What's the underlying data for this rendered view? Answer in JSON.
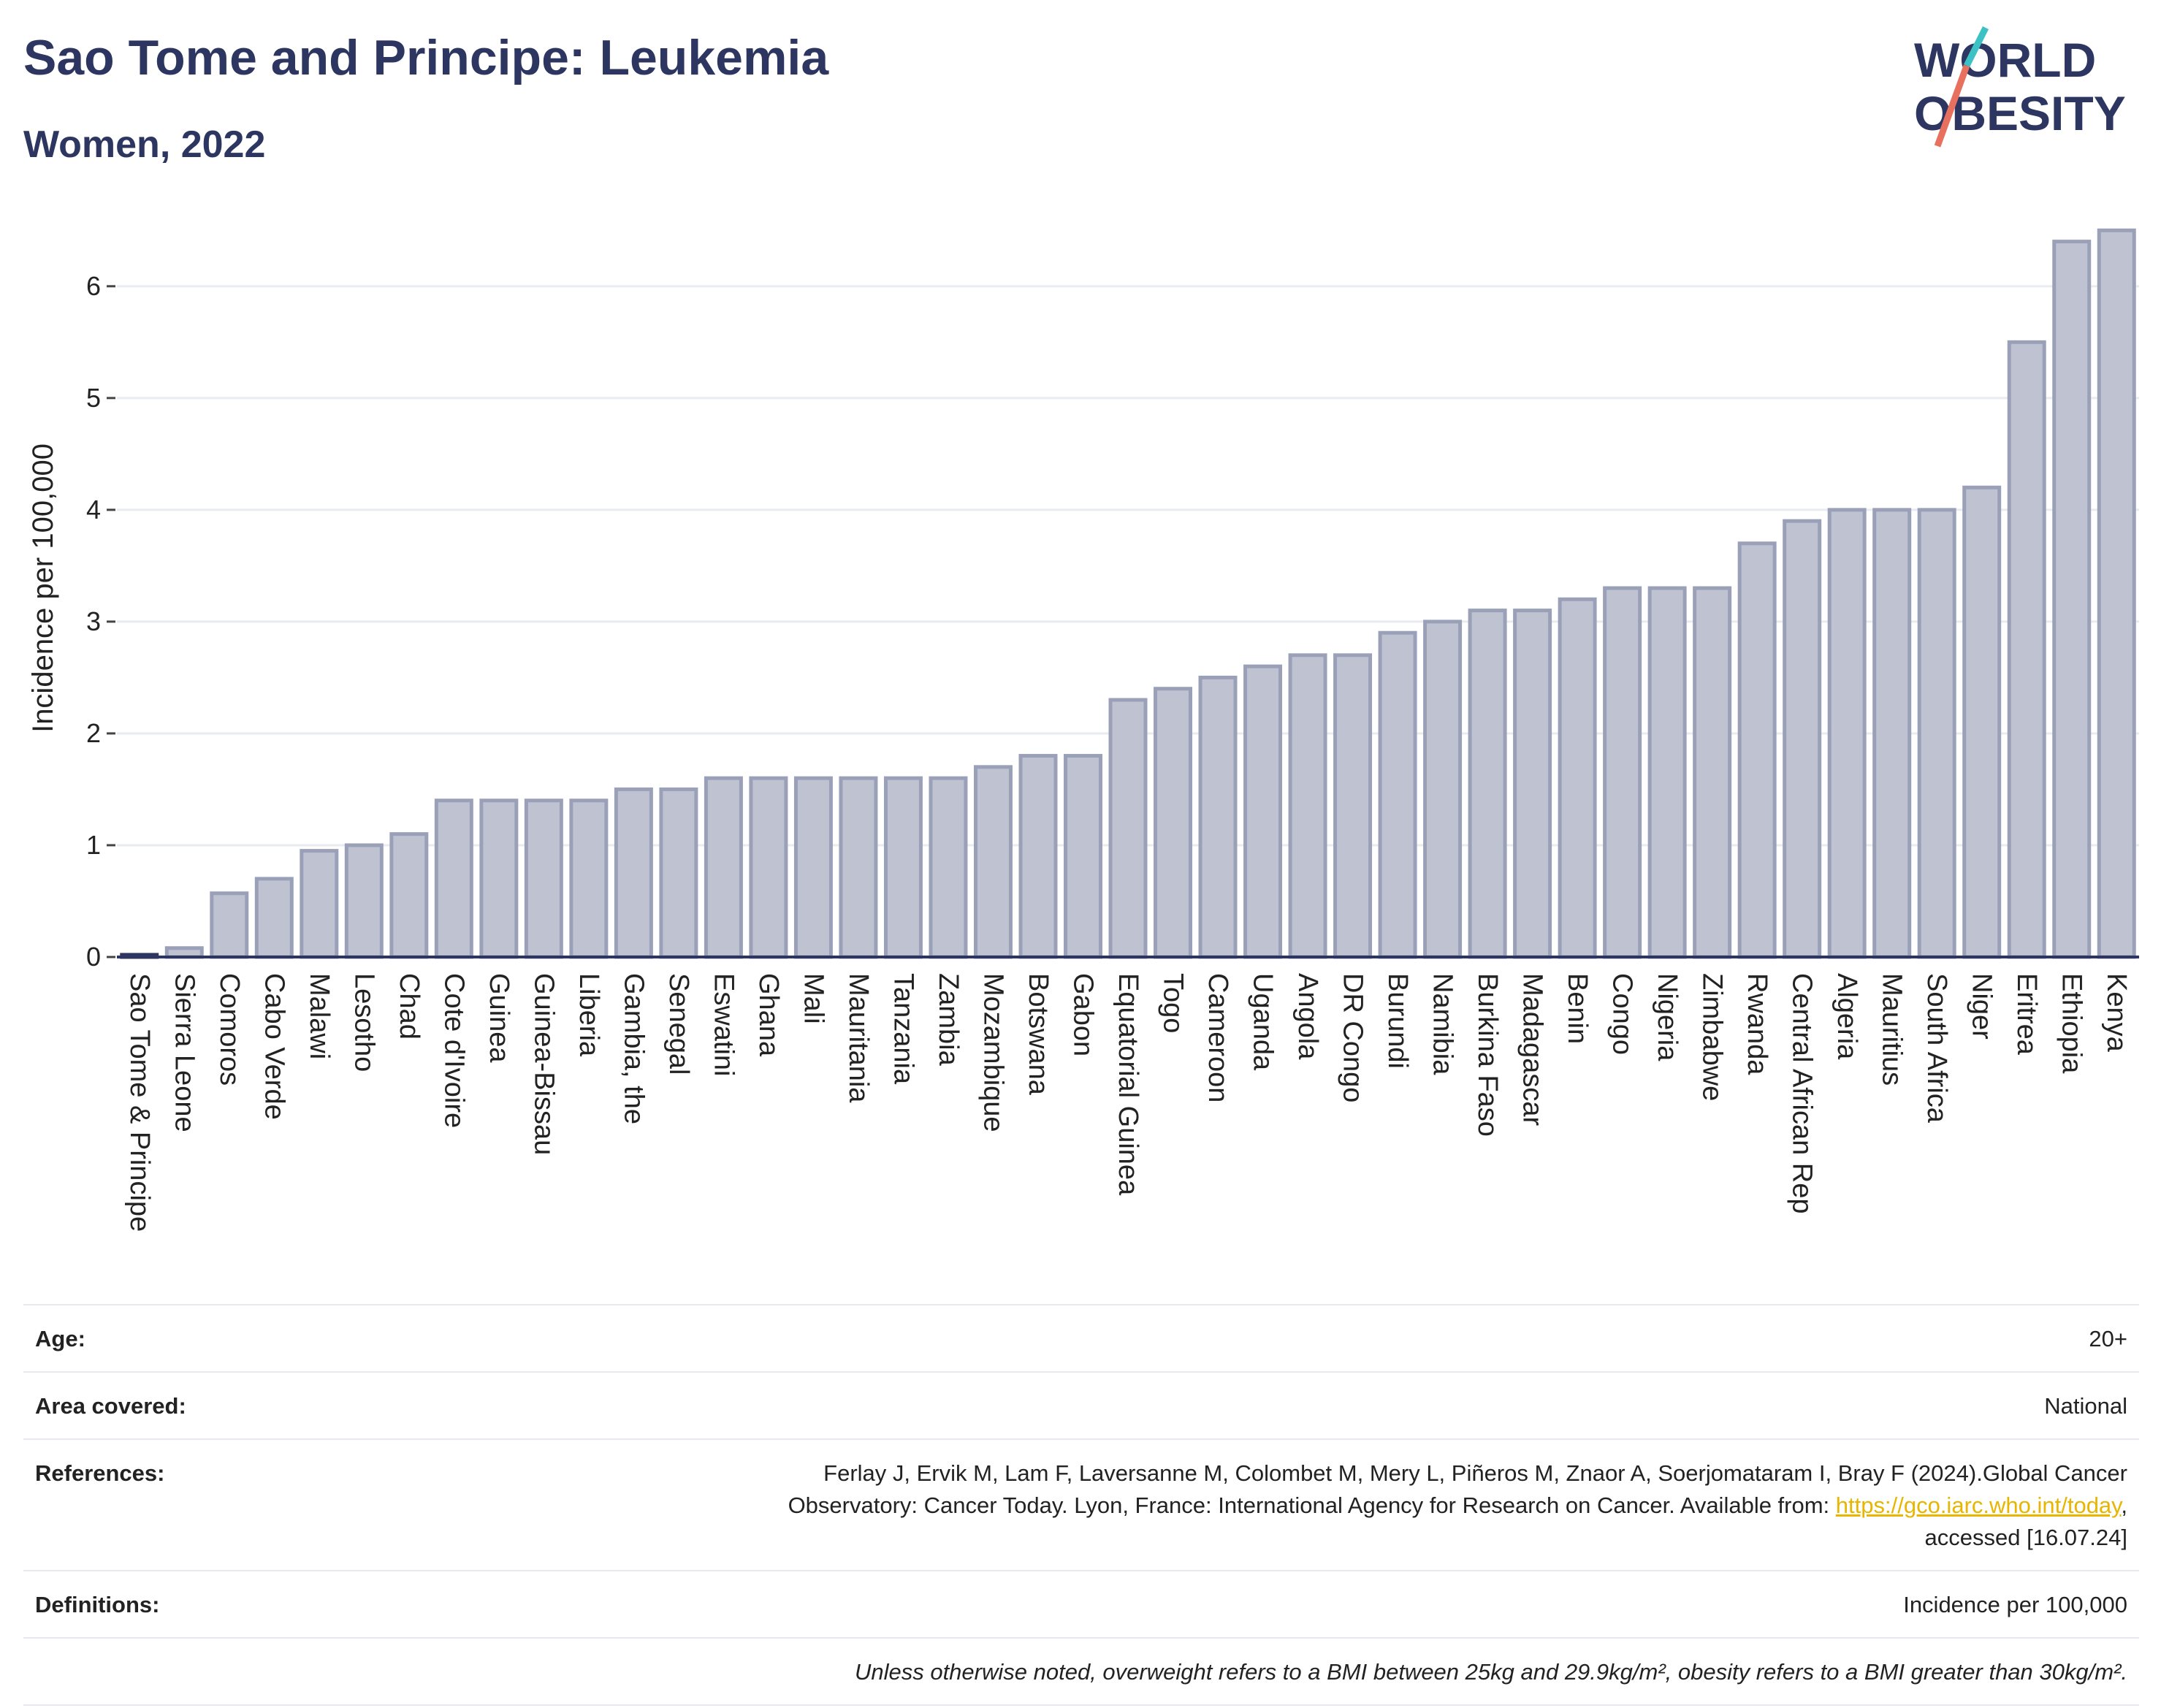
{
  "header": {
    "title": "Sao Tome and Principe: Leukemia",
    "subtitle": "Women, 2022",
    "logo_line1": "WORLD",
    "logo_line2": "OBESITY"
  },
  "colors": {
    "title": "#2d3660",
    "bar_fill": "#bfc3d1",
    "bar_stroke": "#9aa0b8",
    "highlight": "#2d3660",
    "link": "#e8b500",
    "logo_teal": "#3cc1c4",
    "logo_coral": "#e8705f"
  },
  "chart_data": {
    "type": "bar",
    "ylabel": "Incidence per 100,000",
    "xlabel": "",
    "ylim": [
      0,
      6.6
    ],
    "yticks": [
      0,
      1,
      2,
      3,
      4,
      5,
      6
    ],
    "grid": true,
    "highlight_category": "Sao Tome & Principe",
    "categories": [
      "Sao Tome & Principe",
      "Sierra Leone",
      "Comoros",
      "Cabo Verde",
      "Malawi",
      "Lesotho",
      "Chad",
      "Cote d'Ivoire",
      "Guinea",
      "Guinea-Bissau",
      "Liberia",
      "Gambia, the",
      "Senegal",
      "Eswatini",
      "Ghana",
      "Mali",
      "Mauritania",
      "Tanzania",
      "Zambia",
      "Mozambique",
      "Botswana",
      "Gabon",
      "Equatorial Guinea",
      "Togo",
      "Cameroon",
      "Uganda",
      "Angola",
      "DR Congo",
      "Burundi",
      "Namibia",
      "Burkina Faso",
      "Madagascar",
      "Benin",
      "Congo",
      "Nigeria",
      "Zimbabwe",
      "Rwanda",
      "Central African Rep",
      "Algeria",
      "Mauritius",
      "South Africa",
      "Niger",
      "Eritrea",
      "Ethiopia",
      "Kenya"
    ],
    "values": [
      0.02,
      0.08,
      0.57,
      0.7,
      0.95,
      1.0,
      1.1,
      1.4,
      1.4,
      1.4,
      1.4,
      1.5,
      1.5,
      1.6,
      1.6,
      1.6,
      1.6,
      1.6,
      1.6,
      1.7,
      1.8,
      1.8,
      2.3,
      2.4,
      2.5,
      2.6,
      2.7,
      2.7,
      2.9,
      3.0,
      3.1,
      3.1,
      3.2,
      3.3,
      3.3,
      3.3,
      3.7,
      3.9,
      4.0,
      4.0,
      4.0,
      4.2,
      5.5,
      6.4,
      6.5
    ]
  },
  "meta": {
    "age_label": "Age:",
    "age_value": "20+",
    "area_label": "Area covered:",
    "area_value": "National",
    "references_label": "References:",
    "references_text_line1": "Ferlay J, Ervik M, Lam F, Laversanne M, Colombet M, Mery L, Piñeros M, Znaor A, Soerjomataram I, Bray F (2024).Global Cancer",
    "references_text_line2": "Observatory: Cancer Today. Lyon, France: International Agency for Research on Cancer. Available from: ",
    "references_link": "https://gco.iarc.who.int/today",
    "references_text_line3": "accessed [16.07.24]",
    "definitions_label": "Definitions:",
    "definitions_value": "Incidence per 100,000",
    "note": "Unless otherwise noted, overweight refers to a BMI between 25kg and 29.9kg/m², obesity refers to a BMI greater than 30kg/m²."
  }
}
